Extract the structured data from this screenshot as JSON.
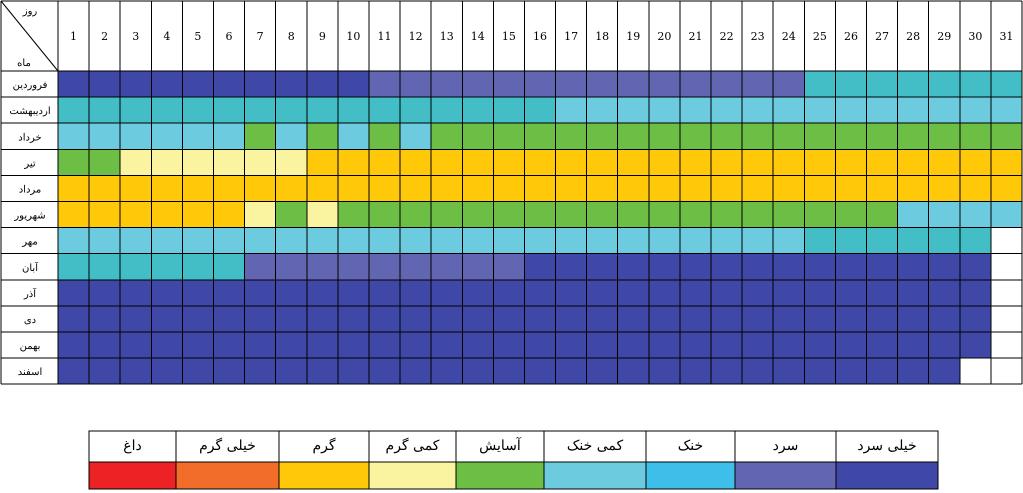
{
  "chart_data": {
    "type": "heatmap",
    "corner": {
      "top_label": "روز",
      "bottom_label": "ماه"
    },
    "days": [
      "1",
      "2",
      "3",
      "4",
      "5",
      "6",
      "7",
      "8",
      "9",
      "10",
      "11",
      "12",
      "13",
      "14",
      "15",
      "16",
      "17",
      "18",
      "19",
      "20",
      "21",
      "22",
      "23",
      "24",
      "25",
      "26",
      "27",
      "28",
      "29",
      "30",
      "31"
    ],
    "months": [
      "فروردین",
      "اردیبهشت",
      "خرداد",
      "تیر",
      "مرداد",
      "شهریور",
      "مهر",
      "آبان",
      "آذر",
      "دی",
      "بهمن",
      "اسفند"
    ],
    "classes": [
      "خیلی سرد",
      "سرد",
      "خنک",
      "کمی خنک",
      "آسایش",
      "کمی گرم",
      "گرم",
      "خیلی گرم",
      "داغ"
    ],
    "class_colors": [
      "#3F48A6",
      "#6266B2",
      "#3EBFEA",
      "#6CCBDF",
      "#6DBE45",
      "#FAF3A0",
      "#FFC909",
      "#F26C2A",
      "#ED2224"
    ],
    "grid_cell_colors": [
      "#3F48A6",
      "#6266B2",
      "#44BEC6",
      "#6CCBDF",
      "#6DBE45",
      "#FAF3A0",
      "#FFC909"
    ],
    "grid_color_class_index": [
      0,
      1,
      3,
      3,
      4,
      5,
      6
    ],
    "empty_cell_color": "#FFFFFF",
    "cells": [
      [
        0,
        0,
        0,
        0,
        0,
        0,
        0,
        0,
        0,
        0,
        1,
        1,
        1,
        1,
        1,
        1,
        1,
        1,
        1,
        1,
        1,
        1,
        1,
        1,
        2,
        2,
        2,
        2,
        2,
        2,
        2
      ],
      [
        2,
        2,
        2,
        2,
        2,
        2,
        2,
        2,
        2,
        2,
        2,
        2,
        2,
        2,
        2,
        2,
        3,
        3,
        3,
        3,
        3,
        3,
        3,
        3,
        3,
        3,
        3,
        3,
        3,
        3,
        3
      ],
      [
        3,
        3,
        3,
        3,
        3,
        3,
        4,
        3,
        4,
        3,
        4,
        3,
        4,
        4,
        4,
        4,
        4,
        4,
        4,
        4,
        4,
        4,
        4,
        4,
        4,
        4,
        4,
        4,
        4,
        4,
        4
      ],
      [
        4,
        4,
        5,
        5,
        5,
        5,
        5,
        5,
        6,
        6,
        6,
        6,
        6,
        6,
        6,
        6,
        6,
        6,
        6,
        6,
        6,
        6,
        6,
        6,
        6,
        6,
        6,
        6,
        6,
        6,
        6
      ],
      [
        6,
        6,
        6,
        6,
        6,
        6,
        6,
        6,
        6,
        6,
        6,
        6,
        6,
        6,
        6,
        6,
        6,
        6,
        6,
        6,
        6,
        6,
        6,
        6,
        6,
        6,
        6,
        6,
        6,
        6,
        6
      ],
      [
        6,
        6,
        6,
        6,
        6,
        6,
        5,
        4,
        5,
        4,
        4,
        4,
        4,
        4,
        4,
        4,
        4,
        4,
        4,
        4,
        4,
        4,
        4,
        4,
        4,
        4,
        4,
        3,
        3,
        3,
        3
      ],
      [
        3,
        3,
        3,
        3,
        3,
        3,
        3,
        3,
        3,
        3,
        3,
        3,
        3,
        3,
        3,
        3,
        3,
        3,
        3,
        3,
        3,
        3,
        3,
        3,
        2,
        2,
        2,
        2,
        2,
        2,
        -1
      ],
      [
        2,
        2,
        2,
        2,
        2,
        2,
        1,
        1,
        1,
        1,
        1,
        1,
        1,
        1,
        1,
        0,
        0,
        0,
        0,
        0,
        0,
        0,
        0,
        0,
        0,
        0,
        0,
        0,
        0,
        0,
        -1
      ],
      [
        0,
        0,
        0,
        0,
        0,
        0,
        0,
        0,
        0,
        0,
        0,
        0,
        0,
        0,
        0,
        0,
        0,
        0,
        0,
        0,
        0,
        0,
        0,
        0,
        0,
        0,
        0,
        0,
        0,
        0,
        -1
      ],
      [
        0,
        0,
        0,
        0,
        0,
        0,
        0,
        0,
        0,
        0,
        0,
        0,
        0,
        0,
        0,
        0,
        0,
        0,
        0,
        0,
        0,
        0,
        0,
        0,
        0,
        0,
        0,
        0,
        0,
        0,
        -1
      ],
      [
        0,
        0,
        0,
        0,
        0,
        0,
        0,
        0,
        0,
        0,
        0,
        0,
        0,
        0,
        0,
        0,
        0,
        0,
        0,
        0,
        0,
        0,
        0,
        0,
        0,
        0,
        0,
        0,
        0,
        0,
        -1
      ],
      [
        0,
        0,
        0,
        0,
        0,
        0,
        0,
        0,
        0,
        0,
        0,
        0,
        0,
        0,
        0,
        0,
        0,
        0,
        0,
        0,
        0,
        0,
        0,
        0,
        0,
        0,
        0,
        0,
        0,
        -1,
        -1
      ]
    ]
  }
}
